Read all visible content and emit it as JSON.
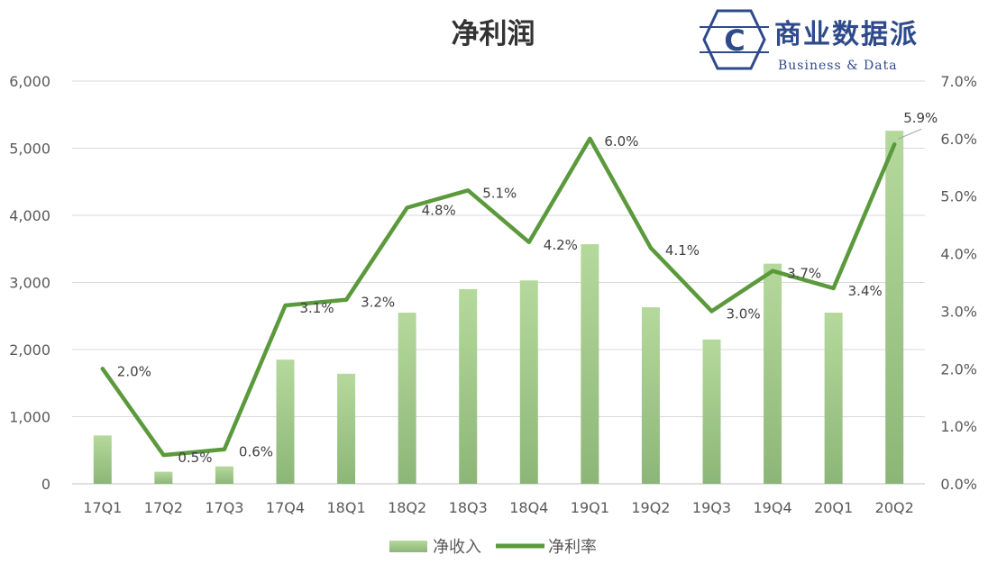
{
  "logo": {
    "letter": "C",
    "name_cn": "商业数据派",
    "name_en": "Business & Data",
    "color": "#2E4A8B"
  },
  "chart_data": {
    "type": "bar",
    "title": "净利润",
    "categories": [
      "17Q1",
      "17Q2",
      "17Q3",
      "17Q4",
      "18Q1",
      "18Q2",
      "18Q3",
      "18Q4",
      "19Q1",
      "19Q2",
      "19Q3",
      "19Q4",
      "20Q1",
      "20Q2"
    ],
    "series": [
      {
        "name": "净收入",
        "type": "bar",
        "axis": "left",
        "color": "#A9D18E",
        "values": [
          720,
          180,
          260,
          1850,
          1640,
          2550,
          2900,
          3030,
          3570,
          2630,
          2150,
          3280,
          2550,
          5260
        ]
      },
      {
        "name": "净利率",
        "type": "line",
        "axis": "right",
        "color": "#5B9A3C",
        "values": [
          2.0,
          0.5,
          0.6,
          3.1,
          3.2,
          4.8,
          5.1,
          4.2,
          6.0,
          4.1,
          3.0,
          3.7,
          3.4,
          5.9
        ],
        "labels": [
          "2.0%",
          "0.5%",
          "0.6%",
          "3.1%",
          "3.2%",
          "4.8%",
          "5.1%",
          "4.2%",
          "6.0%",
          "4.1%",
          "3.0%",
          "3.7%",
          "3.4%",
          "5.9%"
        ]
      }
    ],
    "y_left": {
      "min": 0,
      "max": 6000,
      "ticks": [
        "0",
        "1,000",
        "2,000",
        "3,000",
        "4,000",
        "5,000",
        "6,000"
      ]
    },
    "y_right": {
      "min": 0,
      "max": 7.0,
      "ticks": [
        "0.0%",
        "1.0%",
        "2.0%",
        "3.0%",
        "4.0%",
        "5.0%",
        "6.0%",
        "7.0%"
      ]
    },
    "grid": true,
    "legend_position": "bottom"
  }
}
